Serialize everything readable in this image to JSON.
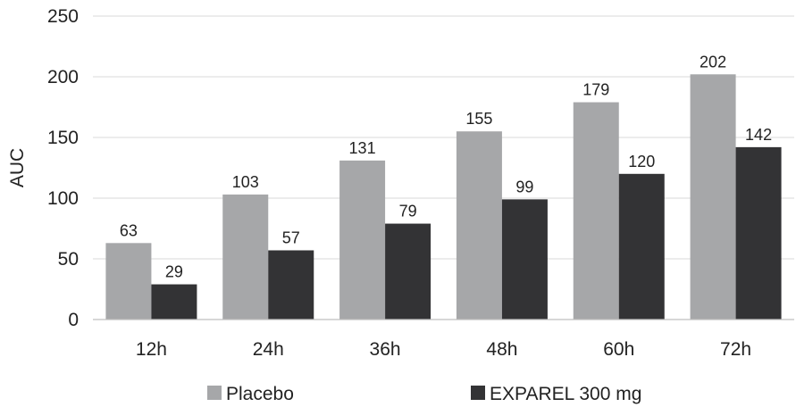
{
  "chart_data": {
    "type": "bar",
    "categories": [
      "12h",
      "24h",
      "36h",
      "48h",
      "60h",
      "72h"
    ],
    "series": [
      {
        "name": "Placebo",
        "values": [
          63,
          103,
          131,
          155,
          179,
          202
        ],
        "color": "#a6a7a9"
      },
      {
        "name": "EXPAREL 300 mg",
        "values": [
          29,
          57,
          79,
          99,
          120,
          142
        ],
        "color": "#333335"
      }
    ],
    "title": "",
    "xlabel": "",
    "ylabel": "AUC",
    "ylim": [
      0,
      250
    ],
    "yticks": [
      0,
      50,
      100,
      150,
      200,
      250
    ],
    "grid": true,
    "legend_position": "bottom"
  }
}
